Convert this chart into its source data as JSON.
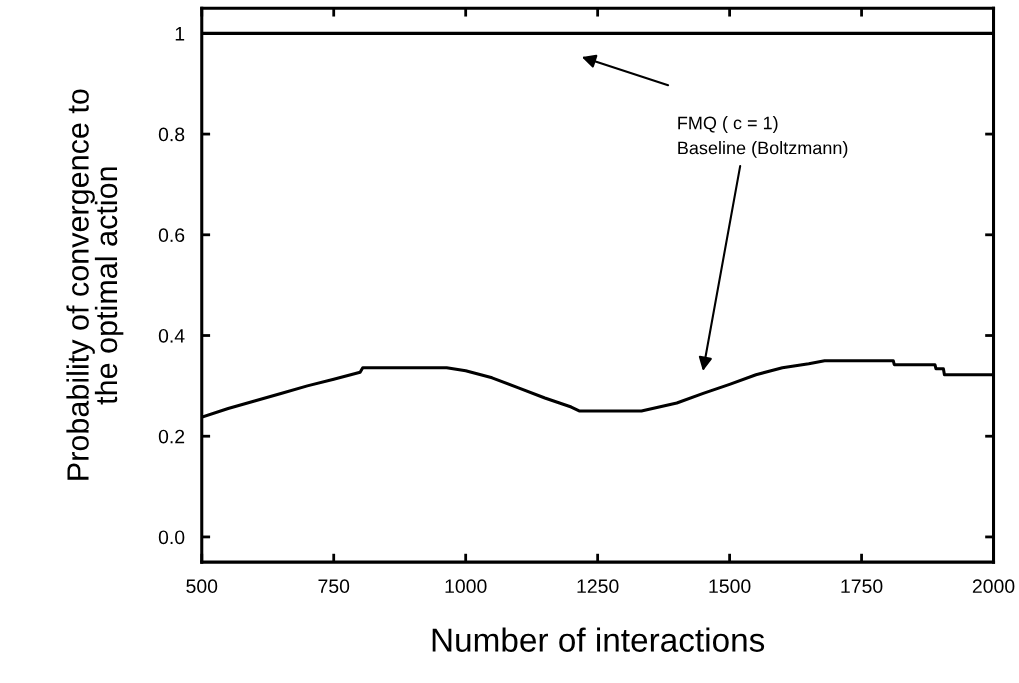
{
  "chart_data": {
    "type": "line",
    "xlabel": "Number of interactions",
    "ylabel": "Probability of convergence to\nthe optimal action",
    "xlim": [
      500,
      2000
    ],
    "xticks": [
      500,
      750,
      1000,
      1250,
      1500,
      1750,
      2000
    ],
    "ylim": [
      -0.05,
      1.05
    ],
    "yticks": [
      {
        "value": 0,
        "label": "0.0"
      },
      0.2,
      0.4,
      0.6,
      0.8,
      1
    ],
    "grid": false,
    "series": [
      {
        "color": "#000000",
        "x": [
          500,
          2000
        ],
        "values": [
          1.0,
          1.0
        ]
      },
      {
        "color": "#000000",
        "x": [
          500,
          550,
          600,
          650,
          700,
          750,
          800,
          805,
          964,
          1000,
          1050,
          1100,
          1150,
          1200,
          1216,
          1333,
          1400,
          1450,
          1500,
          1550,
          1600,
          1650,
          1680,
          1810,
          1812,
          1889,
          1891,
          1905,
          1907,
          2000
        ],
        "values": [
          0.238,
          0.255,
          0.27,
          0.285,
          0.3,
          0.313,
          0.327,
          0.336,
          0.336,
          0.33,
          0.316,
          0.296,
          0.276,
          0.258,
          0.25,
          0.25,
          0.266,
          0.285,
          0.303,
          0.322,
          0.336,
          0.344,
          0.35,
          0.35,
          0.342,
          0.342,
          0.334,
          0.334,
          0.322,
          0.322
        ]
      }
    ],
    "annotations": [
      "FMQ ( c = 1)",
      "Baseline (Boltzmann)"
    ]
  }
}
